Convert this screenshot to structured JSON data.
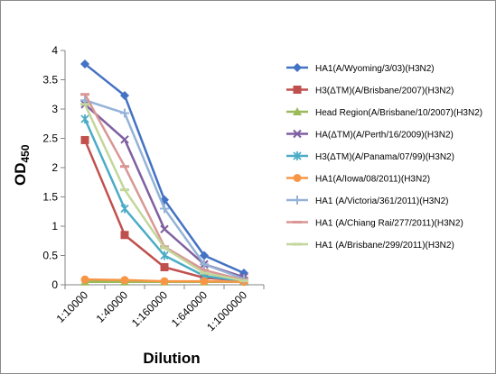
{
  "chart_data": {
    "type": "line",
    "categories": [
      "1:10000",
      "1:40000",
      "1:160000",
      "1:640000",
      "1:1000000"
    ],
    "xlabel": "Dilution",
    "ylabel": "OD",
    "ylabel_sub": "450",
    "ylim": [
      0,
      4
    ],
    "yticks": [
      "0",
      "0.5",
      "1",
      "1.5",
      "2",
      "2.5",
      "3",
      "3.5",
      "4"
    ],
    "grid": false,
    "legend_position": "right",
    "series": [
      {
        "name": "HA1(A/Wyoming/3/03)(H3N2)",
        "values": [
          3.77,
          3.23,
          1.45,
          0.5,
          0.2
        ],
        "color": "#4472C4",
        "marker": "diamond"
      },
      {
        "name": "H3(ΔTM)(A/Brisbane/2007)(H3N2)",
        "values": [
          2.47,
          0.85,
          0.3,
          0.12,
          0.07
        ],
        "color": "#C0504D",
        "marker": "square"
      },
      {
        "name": "Head Region(A/Brisbane/10/2007)(H3N2)",
        "values": [
          0.05,
          0.05,
          0.05,
          0.05,
          0.05
        ],
        "color": "#9BBB59",
        "marker": "triangle"
      },
      {
        "name": "HA(ΔTM)(A/Perth/16/2009)(H3N2)",
        "values": [
          3.08,
          2.48,
          0.95,
          0.35,
          0.13
        ],
        "color": "#7F5FA0",
        "marker": "x"
      },
      {
        "name": "H3(ΔTM)(A/Panama/07/99)(H3N2)",
        "values": [
          2.83,
          1.3,
          0.5,
          0.15,
          0.06
        ],
        "color": "#4BACC6",
        "marker": "star"
      },
      {
        "name": "HA1(A/Iowa/08/2011)(H3N2)",
        "values": [
          0.09,
          0.08,
          0.06,
          0.06,
          0.05
        ],
        "color": "#F79646",
        "marker": "circle"
      },
      {
        "name": "HA1 (A/Victoria/361/2011)(H3N2)",
        "values": [
          3.15,
          2.93,
          1.3,
          0.35,
          0.1
        ],
        "color": "#95B3D7",
        "marker": "plus"
      },
      {
        "name": "HA1 (A/Chiang Rai/277/2011)(H3N2)",
        "values": [
          3.25,
          2.02,
          0.65,
          0.25,
          0.08
        ],
        "color": "#D99694",
        "marker": "dash"
      },
      {
        "name": "HA1 (A/Brisbane/299/2011)(H3N2)",
        "values": [
          3.08,
          1.62,
          0.63,
          0.2,
          0.07
        ],
        "color": "#C3D69B",
        "marker": "dash"
      }
    ]
  }
}
